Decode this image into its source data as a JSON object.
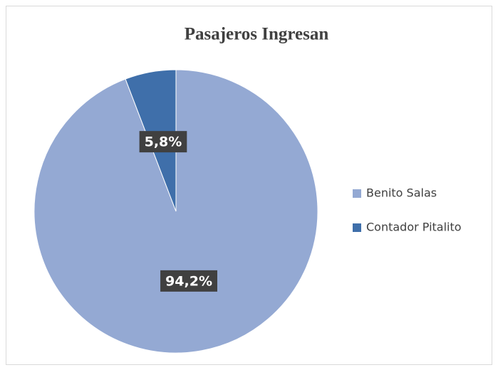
{
  "chart_data": {
    "type": "pie",
    "title": "Pasajeros Ingresan",
    "categories": [
      "Benito Salas",
      "Contador Pitalito"
    ],
    "values": [
      94.2,
      5.8
    ],
    "value_labels": [
      "94,2%",
      "5,8%"
    ],
    "colors": [
      "#94a9d3",
      "#3f6faa"
    ],
    "legend": "right"
  }
}
